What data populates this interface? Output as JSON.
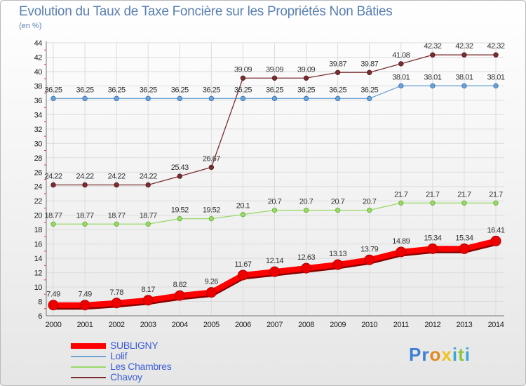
{
  "chart_data": {
    "type": "line",
    "title": "Evolution du Taux de Taxe Foncière sur les Propriétés Non Bâties",
    "ylabel": "(en %)",
    "xlabel": "",
    "x": [
      "2000",
      "2001",
      "2002",
      "2003",
      "2004",
      "2005",
      "2006",
      "2007",
      "2008",
      "2009",
      "2010",
      "2011",
      "2012",
      "2013",
      "2014"
    ],
    "ylim": [
      6,
      44
    ],
    "yticks": [
      6,
      8,
      10,
      12,
      14,
      16,
      18,
      20,
      22,
      24,
      26,
      28,
      30,
      32,
      34,
      36,
      38,
      40,
      42,
      44
    ],
    "grid": true,
    "legend_position": "bottom-left",
    "series": [
      {
        "name": "SUBLIGNY",
        "color": "#ff0000",
        "values": [
          7.49,
          7.49,
          7.78,
          8.17,
          8.82,
          9.26,
          11.67,
          12.14,
          12.63,
          13.13,
          13.79,
          14.89,
          15.34,
          15.34,
          16.41
        ],
        "labels": [
          "7.49",
          "7.49",
          "7.78",
          "8.17",
          "8.82",
          "9.26",
          "11.67",
          "12.14",
          "12.63",
          "13.13",
          "13.79",
          "14.89",
          "15.34",
          "15.34",
          "16.41"
        ]
      },
      {
        "name": "Lolif",
        "color": "#6fa3d4",
        "values": [
          36.25,
          36.25,
          36.25,
          36.25,
          36.25,
          36.25,
          36.25,
          36.25,
          36.25,
          36.25,
          36.25,
          38.01,
          38.01,
          38.01,
          38.01
        ],
        "labels": [
          "36.25",
          "36.25",
          "36.25",
          "36.25",
          "36.25",
          "36.25",
          "36.25",
          "36.25",
          "36.25",
          "36.25",
          "36.25",
          "38.01",
          "38.01",
          "38.01",
          "38.01"
        ]
      },
      {
        "name": "Les Chambres",
        "color": "#9ad86a",
        "values": [
          18.77,
          18.77,
          18.77,
          18.77,
          19.52,
          19.52,
          20.1,
          20.7,
          20.7,
          20.7,
          20.7,
          21.7,
          21.7,
          21.7,
          21.7
        ],
        "labels": [
          "18.77",
          "18.77",
          "18.77",
          "18.77",
          "19.52",
          "19.52",
          "20.1",
          "20.7",
          "20.7",
          "20.7",
          "20.7",
          "21.7",
          "21.7",
          "21.7",
          "21.7"
        ]
      },
      {
        "name": "Chavoy",
        "color": "#7b2e32",
        "values": [
          24.22,
          24.22,
          24.22,
          24.22,
          25.43,
          26.67,
          39.09,
          39.09,
          39.09,
          39.87,
          39.87,
          41.08,
          42.32,
          42.32,
          42.32
        ],
        "labels": [
          "24.22",
          "24.22",
          "24.22",
          "24.22",
          "25.43",
          "26.67",
          "39.09",
          "39.09",
          "39.09",
          "39.87",
          "39.87",
          "41.08",
          "42.32",
          "42.32",
          "42.32"
        ]
      }
    ]
  },
  "logo": {
    "p": "P",
    "r": "r",
    "o": "o",
    "x": "x",
    "i": "i",
    "t": "t",
    "i2": "i"
  }
}
